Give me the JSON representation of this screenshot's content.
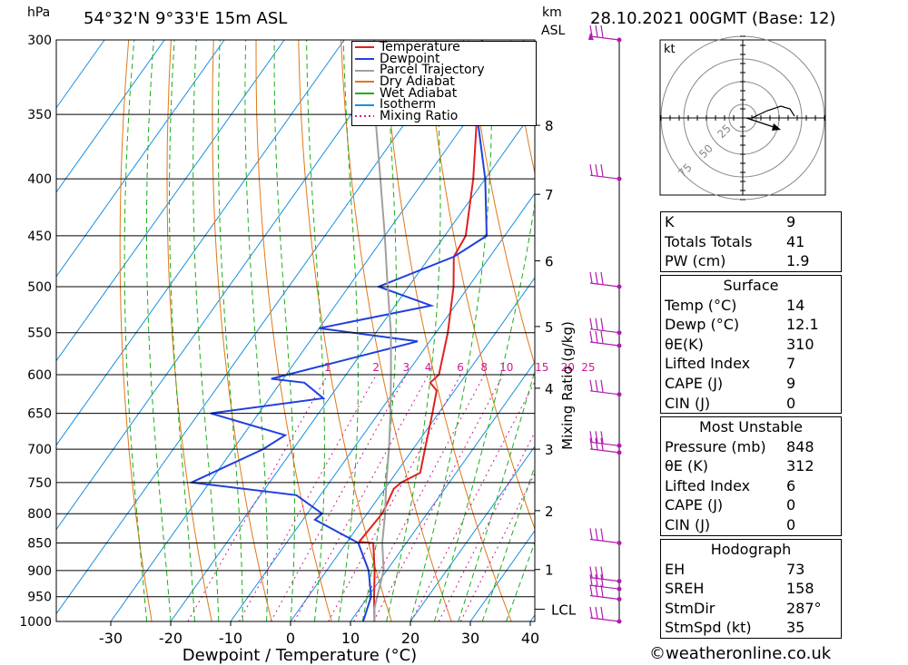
{
  "header": {
    "pressure_unit": "hPa",
    "location": "54°32'N  9°33'E  15m  ASL",
    "km_label": "km",
    "asl_label": "ASL",
    "datetime": "28.10.2021  00GMT  (Base: 12)"
  },
  "chart_data": {
    "type": "line",
    "subtype": "skew-T log-P",
    "xlabel": "Dewpoint / Temperature (°C)",
    "right_axis_label": "Mixing Ratio (g/kg)",
    "x_ticks": [
      -30,
      -20,
      -10,
      0,
      10,
      20,
      30,
      40
    ],
    "pressure_levels": [
      300,
      350,
      400,
      450,
      500,
      550,
      600,
      650,
      700,
      750,
      800,
      850,
      900,
      950,
      1000
    ],
    "height_ticks_km": [
      {
        "km": "1",
        "p": 898
      },
      {
        "km": "2",
        "p": 795
      },
      {
        "km": "3",
        "p": 700
      },
      {
        "km": "4",
        "p": 617
      },
      {
        "km": "5",
        "p": 543
      },
      {
        "km": "6",
        "p": 474
      },
      {
        "km": "7",
        "p": 413
      },
      {
        "km": "8",
        "p": 358
      }
    ],
    "lcl_label": "LCL",
    "lcl_pressure": 975,
    "mixing_ratio_labels": [
      "1",
      "2",
      "3",
      "4",
      "6",
      "8",
      "10",
      "15",
      "20",
      "25"
    ],
    "legend": [
      "Temperature",
      "Dewpoint",
      "Parcel Trajectory",
      "Dry Adiabat",
      "Wet Adiabat",
      "Isotherm",
      "Mixing Ratio"
    ],
    "colors": {
      "temperature": "#e02020",
      "dewpoint": "#2040e0",
      "parcel": "#a0a0a0",
      "dry_adiabat": "#e07818",
      "wet_adiabat": "#18b018",
      "isotherm": "#1890e0",
      "mixing_ratio": "#d01890",
      "wind": "#b01ab0"
    },
    "series": [
      {
        "name": "Temperature",
        "points": [
          [
            1000,
            14.0
          ],
          [
            950,
            11.0
          ],
          [
            900,
            8.0
          ],
          [
            850,
            4.5
          ],
          [
            848,
            2.0
          ],
          [
            800,
            2.5
          ],
          [
            790,
            2.3
          ],
          [
            760,
            1.5
          ],
          [
            750,
            2.0
          ],
          [
            735,
            4.0
          ],
          [
            700,
            2.0
          ],
          [
            650,
            -1.0
          ],
          [
            620,
            -3.0
          ],
          [
            610,
            -5.0
          ],
          [
            600,
            -4.5
          ],
          [
            550,
            -8.0
          ],
          [
            500,
            -12.5
          ],
          [
            470,
            -16.0
          ],
          [
            450,
            -16.5
          ],
          [
            400,
            -22.0
          ],
          [
            350,
            -29.0
          ],
          [
            300,
            -37.0
          ]
        ]
      },
      {
        "name": "Dewpoint",
        "points": [
          [
            1000,
            12.1
          ],
          [
            950,
            10.5
          ],
          [
            900,
            7.0
          ],
          [
            850,
            2.0
          ],
          [
            810,
            -8.0
          ],
          [
            800,
            -7.5
          ],
          [
            770,
            -14.0
          ],
          [
            750,
            -33.0
          ],
          [
            700,
            -25.0
          ],
          [
            680,
            -23.0
          ],
          [
            650,
            -38.0
          ],
          [
            630,
            -21.0
          ],
          [
            610,
            -26.0
          ],
          [
            605,
            -32.0
          ],
          [
            560,
            -12.0
          ],
          [
            545,
            -30.0
          ],
          [
            520,
            -14.0
          ],
          [
            500,
            -25.0
          ],
          [
            470,
            -16.0
          ],
          [
            450,
            -13.0
          ],
          [
            400,
            -20.0
          ],
          [
            340,
            -31.0
          ],
          [
            320,
            -33.0
          ],
          [
            300,
            -37.0
          ]
        ]
      },
      {
        "name": "Parcel Trajectory",
        "points": [
          [
            1000,
            14.0
          ],
          [
            975,
            12.5
          ],
          [
            900,
            9.5
          ],
          [
            850,
            6.0
          ],
          [
            800,
            3.0
          ],
          [
            750,
            -0.5
          ],
          [
            700,
            -4.0
          ],
          [
            650,
            -8.0
          ],
          [
            600,
            -12.5
          ],
          [
            550,
            -17.5
          ],
          [
            500,
            -23.5
          ],
          [
            450,
            -30.0
          ],
          [
            400,
            -37.5
          ],
          [
            350,
            -46.0
          ],
          [
            300,
            -55.0
          ]
        ]
      }
    ],
    "wind_barb_pressures": [
      300,
      400,
      500,
      550,
      565,
      625,
      695,
      705,
      850,
      920,
      935,
      955,
      1000
    ]
  },
  "hodograph": {
    "unit": "kt",
    "ring_labels": [
      "25",
      "50",
      "75"
    ]
  },
  "indices": [
    {
      "label": "K",
      "value": "9"
    },
    {
      "label": "Totals Totals",
      "value": "41"
    },
    {
      "label": "PW (cm)",
      "value": "1.9"
    }
  ],
  "surface": {
    "title": "Surface",
    "rows": [
      {
        "label": "Temp (°C)",
        "value": "14"
      },
      {
        "label": "Dewp (°C)",
        "value": "12.1"
      },
      {
        "label": "θE(K)",
        "value": "310"
      },
      {
        "label": "Lifted Index",
        "value": "7"
      },
      {
        "label": "CAPE (J)",
        "value": "9"
      },
      {
        "label": "CIN (J)",
        "value": "0"
      }
    ]
  },
  "most_unstable": {
    "title": "Most Unstable",
    "rows": [
      {
        "label": "Pressure (mb)",
        "value": "848"
      },
      {
        "label": "θE (K)",
        "value": "312"
      },
      {
        "label": "Lifted Index",
        "value": "6"
      },
      {
        "label": "CAPE (J)",
        "value": "0"
      },
      {
        "label": "CIN (J)",
        "value": "0"
      }
    ]
  },
  "hodograph_table": {
    "title": "Hodograph",
    "rows": [
      {
        "label": "EH",
        "value": "73"
      },
      {
        "label": "SREH",
        "value": "158"
      },
      {
        "label": "StmDir",
        "value": "287°"
      },
      {
        "label": "StmSpd (kt)",
        "value": "35"
      }
    ]
  },
  "credit": "©weatheronline.co.uk"
}
